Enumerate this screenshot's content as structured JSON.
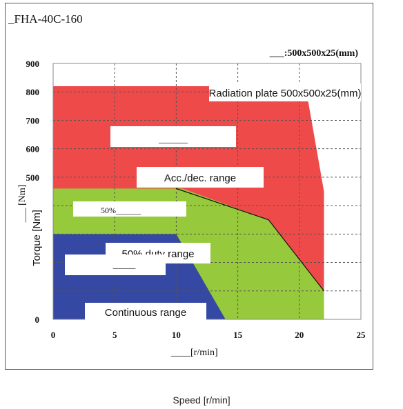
{
  "header": {
    "model": "_FHA-40C-160",
    "plate_note": "___:500x500x25(mm)"
  },
  "chart_data": {
    "type": "area",
    "xlim": [
      0,
      25
    ],
    "ylim": [
      0,
      900
    ],
    "x_ticks": [
      0,
      5,
      10,
      15,
      20,
      25
    ],
    "y_ticks": [
      0,
      100,
      200,
      300,
      400,
      500,
      600,
      700,
      800,
      900
    ],
    "x_tick_labels": [
      "0",
      "5",
      "10",
      "15",
      "20",
      "25"
    ],
    "y_tick_labels": [
      "0",
      "",
      "",
      "",
      "",
      "500",
      "600",
      "700",
      "800",
      "900"
    ],
    "grid": true,
    "xlabel": "____[r/min]",
    "ylabel_serif": "___ [Nm]",
    "ylabel_sans": "Torque [Nm]",
    "series": [
      {
        "name": "Acc./dec. range",
        "color": "#ee4a4a",
        "points": [
          [
            0,
            0
          ],
          [
            0,
            820
          ],
          [
            20.5,
            820
          ],
          [
            22,
            450
          ],
          [
            22,
            0
          ]
        ]
      },
      {
        "name": "50% duty range",
        "color": "#96c93c",
        "points": [
          [
            0,
            0
          ],
          [
            0,
            460
          ],
          [
            10.5,
            460
          ],
          [
            17.5,
            350
          ],
          [
            22,
            100
          ],
          [
            22,
            0
          ]
        ]
      },
      {
        "name": "Continuous range",
        "color": "#3548a3",
        "points": [
          [
            0,
            0
          ],
          [
            0,
            300
          ],
          [
            10,
            300
          ],
          [
            14,
            0
          ]
        ]
      }
    ],
    "outline": [
      [
        10,
        460
      ],
      [
        17.5,
        350
      ],
      [
        22,
        100
      ]
    ],
    "annotations": {
      "radiation_plate": "Radiation plate 500x500x25(mm)",
      "acc_dec": "Acc./dec. range",
      "duty50": "50% duty range",
      "continuous": "Continuous range",
      "red_box_text": "______",
      "green_box_text": "50%______",
      "blue_box_text": "_____"
    }
  },
  "footer": {
    "speed_label": "Speed [r/min]"
  },
  "colors": {
    "acc_dec": "#ee4a4a",
    "duty50": "#96c93c",
    "continuous": "#3548a3",
    "grid": "#555555"
  }
}
